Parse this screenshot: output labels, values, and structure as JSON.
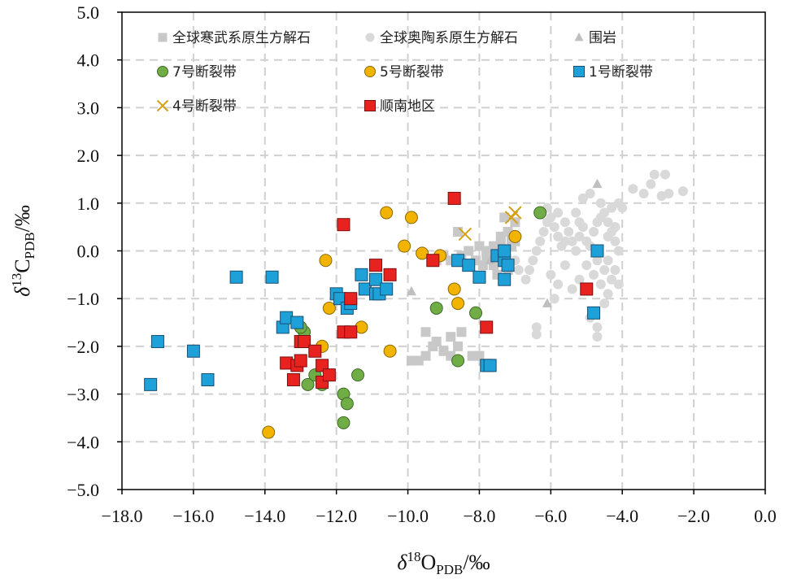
{
  "chart_data": {
    "type": "scatter",
    "xlabel": {
      "prefix": "δ",
      "sup": "18",
      "main": "O",
      "sub": "PDB",
      "unit": "/‰"
    },
    "ylabel": {
      "prefix": "δ",
      "sup": "13",
      "main": "C",
      "sub": "PDB",
      "unit": "/‰"
    },
    "xlim": [
      -18.0,
      0.0
    ],
    "ylim": [
      -5.0,
      5.0
    ],
    "x_ticks": [
      -18.0,
      -16.0,
      -14.0,
      -12.0,
      -10.0,
      -8.0,
      -6.0,
      -4.0,
      -2.0,
      0.0
    ],
    "y_ticks": [
      -5.0,
      -4.0,
      -3.0,
      -2.0,
      -1.0,
      0.0,
      1.0,
      2.0,
      3.0,
      4.0,
      5.0
    ],
    "x_tick_labels": [
      "−18.0",
      "−16.0",
      "−14.0",
      "−12.0",
      "−10.0",
      "−8.0",
      "−6.0",
      "−4.0",
      "−2.0",
      "0.0"
    ],
    "y_tick_labels": [
      "−5.0",
      "−4.0",
      "−3.0",
      "−2.0",
      "−1.0",
      "0.0",
      "1.0",
      "2.0",
      "3.0",
      "4.0",
      "5.0"
    ],
    "grid": "dashed",
    "legend_position": "top",
    "series": [
      {
        "name": "全球寒武系原生方解石",
        "marker": "square",
        "color": "#c8c8c8",
        "stroke": "none",
        "size": "small",
        "points": [
          [
            -9.9,
            -2.3
          ],
          [
            -9.7,
            -2.3
          ],
          [
            -9.5,
            -2.2
          ],
          [
            -9.3,
            -2.0
          ],
          [
            -9.2,
            -1.9
          ],
          [
            -9.0,
            -2.1
          ],
          [
            -8.8,
            -2.2
          ],
          [
            -8.6,
            -2.0
          ],
          [
            -8.2,
            -2.2
          ],
          [
            -8.0,
            -2.2
          ],
          [
            -8.5,
            -1.7
          ],
          [
            -8.8,
            -1.8
          ],
          [
            -9.5,
            -1.7
          ],
          [
            -9.2,
            -0.2
          ],
          [
            -9.0,
            -0.1
          ],
          [
            -8.8,
            -0.2
          ],
          [
            -8.5,
            -0.1
          ],
          [
            -8.3,
            0.0
          ],
          [
            -8.0,
            0.1
          ],
          [
            -7.8,
            0.0
          ],
          [
            -7.6,
            0.1
          ],
          [
            -7.5,
            -0.1
          ],
          [
            -7.3,
            0.0
          ],
          [
            -7.1,
            0.1
          ],
          [
            -7.0,
            0.2
          ],
          [
            -7.4,
            0.3
          ],
          [
            -7.2,
            0.4
          ],
          [
            -8.6,
            0.4
          ],
          [
            -7.9,
            -0.3
          ],
          [
            -7.5,
            -0.5
          ],
          [
            -7.2,
            -0.4
          ],
          [
            -7.6,
            -0.3
          ],
          [
            -7.8,
            -0.1
          ],
          [
            -8.1,
            -0.2
          ],
          [
            -7.4,
            0.2
          ],
          [
            -7.1,
            0.3
          ],
          [
            -7.0,
            0.6
          ],
          [
            -7.3,
            0.7
          ]
        ]
      },
      {
        "name": "全球奥陶系原生方解石",
        "marker": "circle",
        "color": "#d9d9d9",
        "stroke": "none",
        "size": "small",
        "points": [
          [
            -6.7,
            -0.6
          ],
          [
            -6.6,
            -0.4
          ],
          [
            -6.5,
            -0.2
          ],
          [
            -6.4,
            0.0
          ],
          [
            -6.3,
            0.2
          ],
          [
            -6.2,
            0.4
          ],
          [
            -6.1,
            0.6
          ],
          [
            -6.0,
            0.7
          ],
          [
            -5.9,
            0.5
          ],
          [
            -5.8,
            0.3
          ],
          [
            -5.7,
            0.1
          ],
          [
            -5.6,
            0.2
          ],
          [
            -5.5,
            0.4
          ],
          [
            -5.4,
            0.2
          ],
          [
            -5.3,
            0.0
          ],
          [
            -5.2,
            0.3
          ],
          [
            -5.1,
            0.5
          ],
          [
            -5.0,
            0.2
          ],
          [
            -4.9,
            0.1
          ],
          [
            -4.8,
            0.4
          ],
          [
            -4.7,
            0.6
          ],
          [
            -4.6,
            0.7
          ],
          [
            -4.5,
            0.8
          ],
          [
            -4.4,
            0.6
          ],
          [
            -4.3,
            0.4
          ],
          [
            -4.2,
            0.2
          ],
          [
            -4.1,
            0.0
          ],
          [
            -4.0,
            0.9
          ],
          [
            -4.1,
            1.0
          ],
          [
            -4.3,
            0.9
          ],
          [
            -4.6,
            1.0
          ],
          [
            -4.9,
            1.2
          ],
          [
            -5.1,
            1.1
          ],
          [
            -5.3,
            0.8
          ],
          [
            -5.6,
            0.6
          ],
          [
            -5.8,
            0.8
          ],
          [
            -6.1,
            0.9
          ],
          [
            -5.0,
            -0.3
          ],
          [
            -4.8,
            -0.5
          ],
          [
            -4.6,
            -0.7
          ],
          [
            -4.4,
            -0.9
          ],
          [
            -4.3,
            -0.6
          ],
          [
            -4.1,
            -0.7
          ],
          [
            -4.5,
            -0.4
          ],
          [
            -4.7,
            -0.2
          ],
          [
            -5.2,
            -0.6
          ],
          [
            -5.4,
            -0.8
          ],
          [
            -5.6,
            -0.3
          ],
          [
            -5.8,
            -0.7
          ],
          [
            -5.9,
            -1.0
          ],
          [
            -6.0,
            -0.5
          ],
          [
            -4.9,
            -1.4
          ],
          [
            -4.7,
            -1.6
          ],
          [
            -4.7,
            -1.8
          ],
          [
            -4.5,
            -1.1
          ],
          [
            -4.2,
            -0.4
          ],
          [
            -4.4,
            -0.2
          ],
          [
            -6.4,
            -1.6
          ],
          [
            -6.4,
            -1.75
          ],
          [
            -6.9,
            -0.4
          ],
          [
            -7.0,
            -0.2
          ],
          [
            -5.2,
            0.6
          ],
          [
            -4.4,
            0.3
          ],
          [
            -4.2,
            0.5
          ],
          [
            -3.7,
            1.3
          ],
          [
            -3.4,
            1.2
          ],
          [
            -3.1,
            1.6
          ],
          [
            -2.8,
            1.6
          ],
          [
            -2.7,
            1.2
          ],
          [
            -2.3,
            1.25
          ],
          [
            -2.9,
            1.15
          ],
          [
            -3.2,
            1.4
          ]
        ]
      },
      {
        "name": "围岩",
        "marker": "triangle",
        "color": "#bfbfbf",
        "stroke": "none",
        "size": "small",
        "points": [
          [
            -9.9,
            -0.85
          ],
          [
            -7.7,
            -0.2
          ],
          [
            -6.1,
            -1.1
          ],
          [
            -4.7,
            1.4
          ]
        ]
      },
      {
        "name": "7号断裂带",
        "marker": "circle",
        "color": "#70ad47",
        "stroke": "#3d6b25",
        "size": "large",
        "points": [
          [
            -6.3,
            0.8
          ],
          [
            -12.9,
            -1.7
          ],
          [
            -13.0,
            -1.6
          ],
          [
            -12.8,
            -2.8
          ],
          [
            -12.4,
            -2.8
          ],
          [
            -11.8,
            -3.0
          ],
          [
            -11.7,
            -3.2
          ],
          [
            -11.4,
            -2.6
          ],
          [
            -11.8,
            -3.6
          ],
          [
            -12.6,
            -2.6
          ],
          [
            -9.2,
            -1.2
          ],
          [
            -8.1,
            -1.3
          ],
          [
            -8.6,
            -2.3
          ]
        ]
      },
      {
        "name": "5号断裂带",
        "marker": "circle",
        "color": "#f2b400",
        "stroke": "#8a6a00",
        "size": "large",
        "points": [
          [
            -13.9,
            -3.8
          ],
          [
            -12.4,
            -2.0
          ],
          [
            -12.2,
            -1.2
          ],
          [
            -12.3,
            -0.2
          ],
          [
            -11.3,
            -1.6
          ],
          [
            -10.5,
            -2.1
          ],
          [
            -10.6,
            0.8
          ],
          [
            -10.1,
            0.1
          ],
          [
            -9.9,
            0.7
          ],
          [
            -9.6,
            -0.05
          ],
          [
            -9.1,
            -0.1
          ],
          [
            -8.7,
            -0.8
          ],
          [
            -8.6,
            -1.1
          ],
          [
            -7.0,
            0.3
          ]
        ]
      },
      {
        "name": "1号断裂带",
        "marker": "square",
        "color": "#1ea0d8",
        "stroke": "#1b4f72",
        "size": "large",
        "points": [
          [
            -17.2,
            -2.8
          ],
          [
            -17.0,
            -1.9
          ],
          [
            -16.0,
            -2.1
          ],
          [
            -15.6,
            -2.7
          ],
          [
            -14.8,
            -0.55
          ],
          [
            -13.8,
            -0.55
          ],
          [
            -13.5,
            -1.6
          ],
          [
            -13.4,
            -1.4
          ],
          [
            -13.1,
            -1.5
          ],
          [
            -12.0,
            -0.9
          ],
          [
            -11.9,
            -1.0
          ],
          [
            -11.7,
            -1.2
          ],
          [
            -11.6,
            -1.1
          ],
          [
            -11.3,
            -0.5
          ],
          [
            -11.2,
            -0.8
          ],
          [
            -10.9,
            -0.6
          ],
          [
            -10.9,
            -0.9
          ],
          [
            -10.8,
            -0.9
          ],
          [
            -10.6,
            -0.8
          ],
          [
            -8.6,
            -0.2
          ],
          [
            -8.3,
            -0.3
          ],
          [
            -7.8,
            -2.4
          ],
          [
            -7.7,
            -2.4
          ],
          [
            -7.5,
            -0.1
          ],
          [
            -7.3,
            -0.2
          ],
          [
            -7.3,
            -0.6
          ],
          [
            -7.2,
            -0.3
          ],
          [
            -7.3,
            0.0
          ],
          [
            -4.8,
            -1.3
          ],
          [
            -4.7,
            0.0
          ],
          [
            -8.0,
            -0.55
          ]
        ]
      },
      {
        "name": "4号断裂带",
        "marker": "x",
        "color": "#d4a017",
        "stroke": "none",
        "size": "large",
        "points": [
          [
            -8.4,
            0.35
          ],
          [
            -7.1,
            0.7
          ],
          [
            -7.0,
            0.8
          ]
        ]
      },
      {
        "name": "顺南地区",
        "marker": "square",
        "color": "#e8231f",
        "stroke": "#7a1010",
        "size": "large",
        "points": [
          [
            -13.4,
            -2.35
          ],
          [
            -13.2,
            -2.7
          ],
          [
            -13.1,
            -2.4
          ],
          [
            -13.0,
            -2.3
          ],
          [
            -13.0,
            -1.9
          ],
          [
            -12.9,
            -1.9
          ],
          [
            -12.6,
            -2.1
          ],
          [
            -12.4,
            -2.4
          ],
          [
            -12.4,
            -2.75
          ],
          [
            -12.2,
            -2.6
          ],
          [
            -11.8,
            -1.7
          ],
          [
            -11.6,
            -1.0
          ],
          [
            -11.6,
            -1.7
          ],
          [
            -11.8,
            0.55
          ],
          [
            -10.9,
            -0.3
          ],
          [
            -10.5,
            -0.5
          ],
          [
            -9.3,
            -0.2
          ],
          [
            -8.7,
            1.1
          ],
          [
            -7.8,
            -1.6
          ],
          [
            -5.0,
            -0.8
          ]
        ]
      }
    ]
  }
}
